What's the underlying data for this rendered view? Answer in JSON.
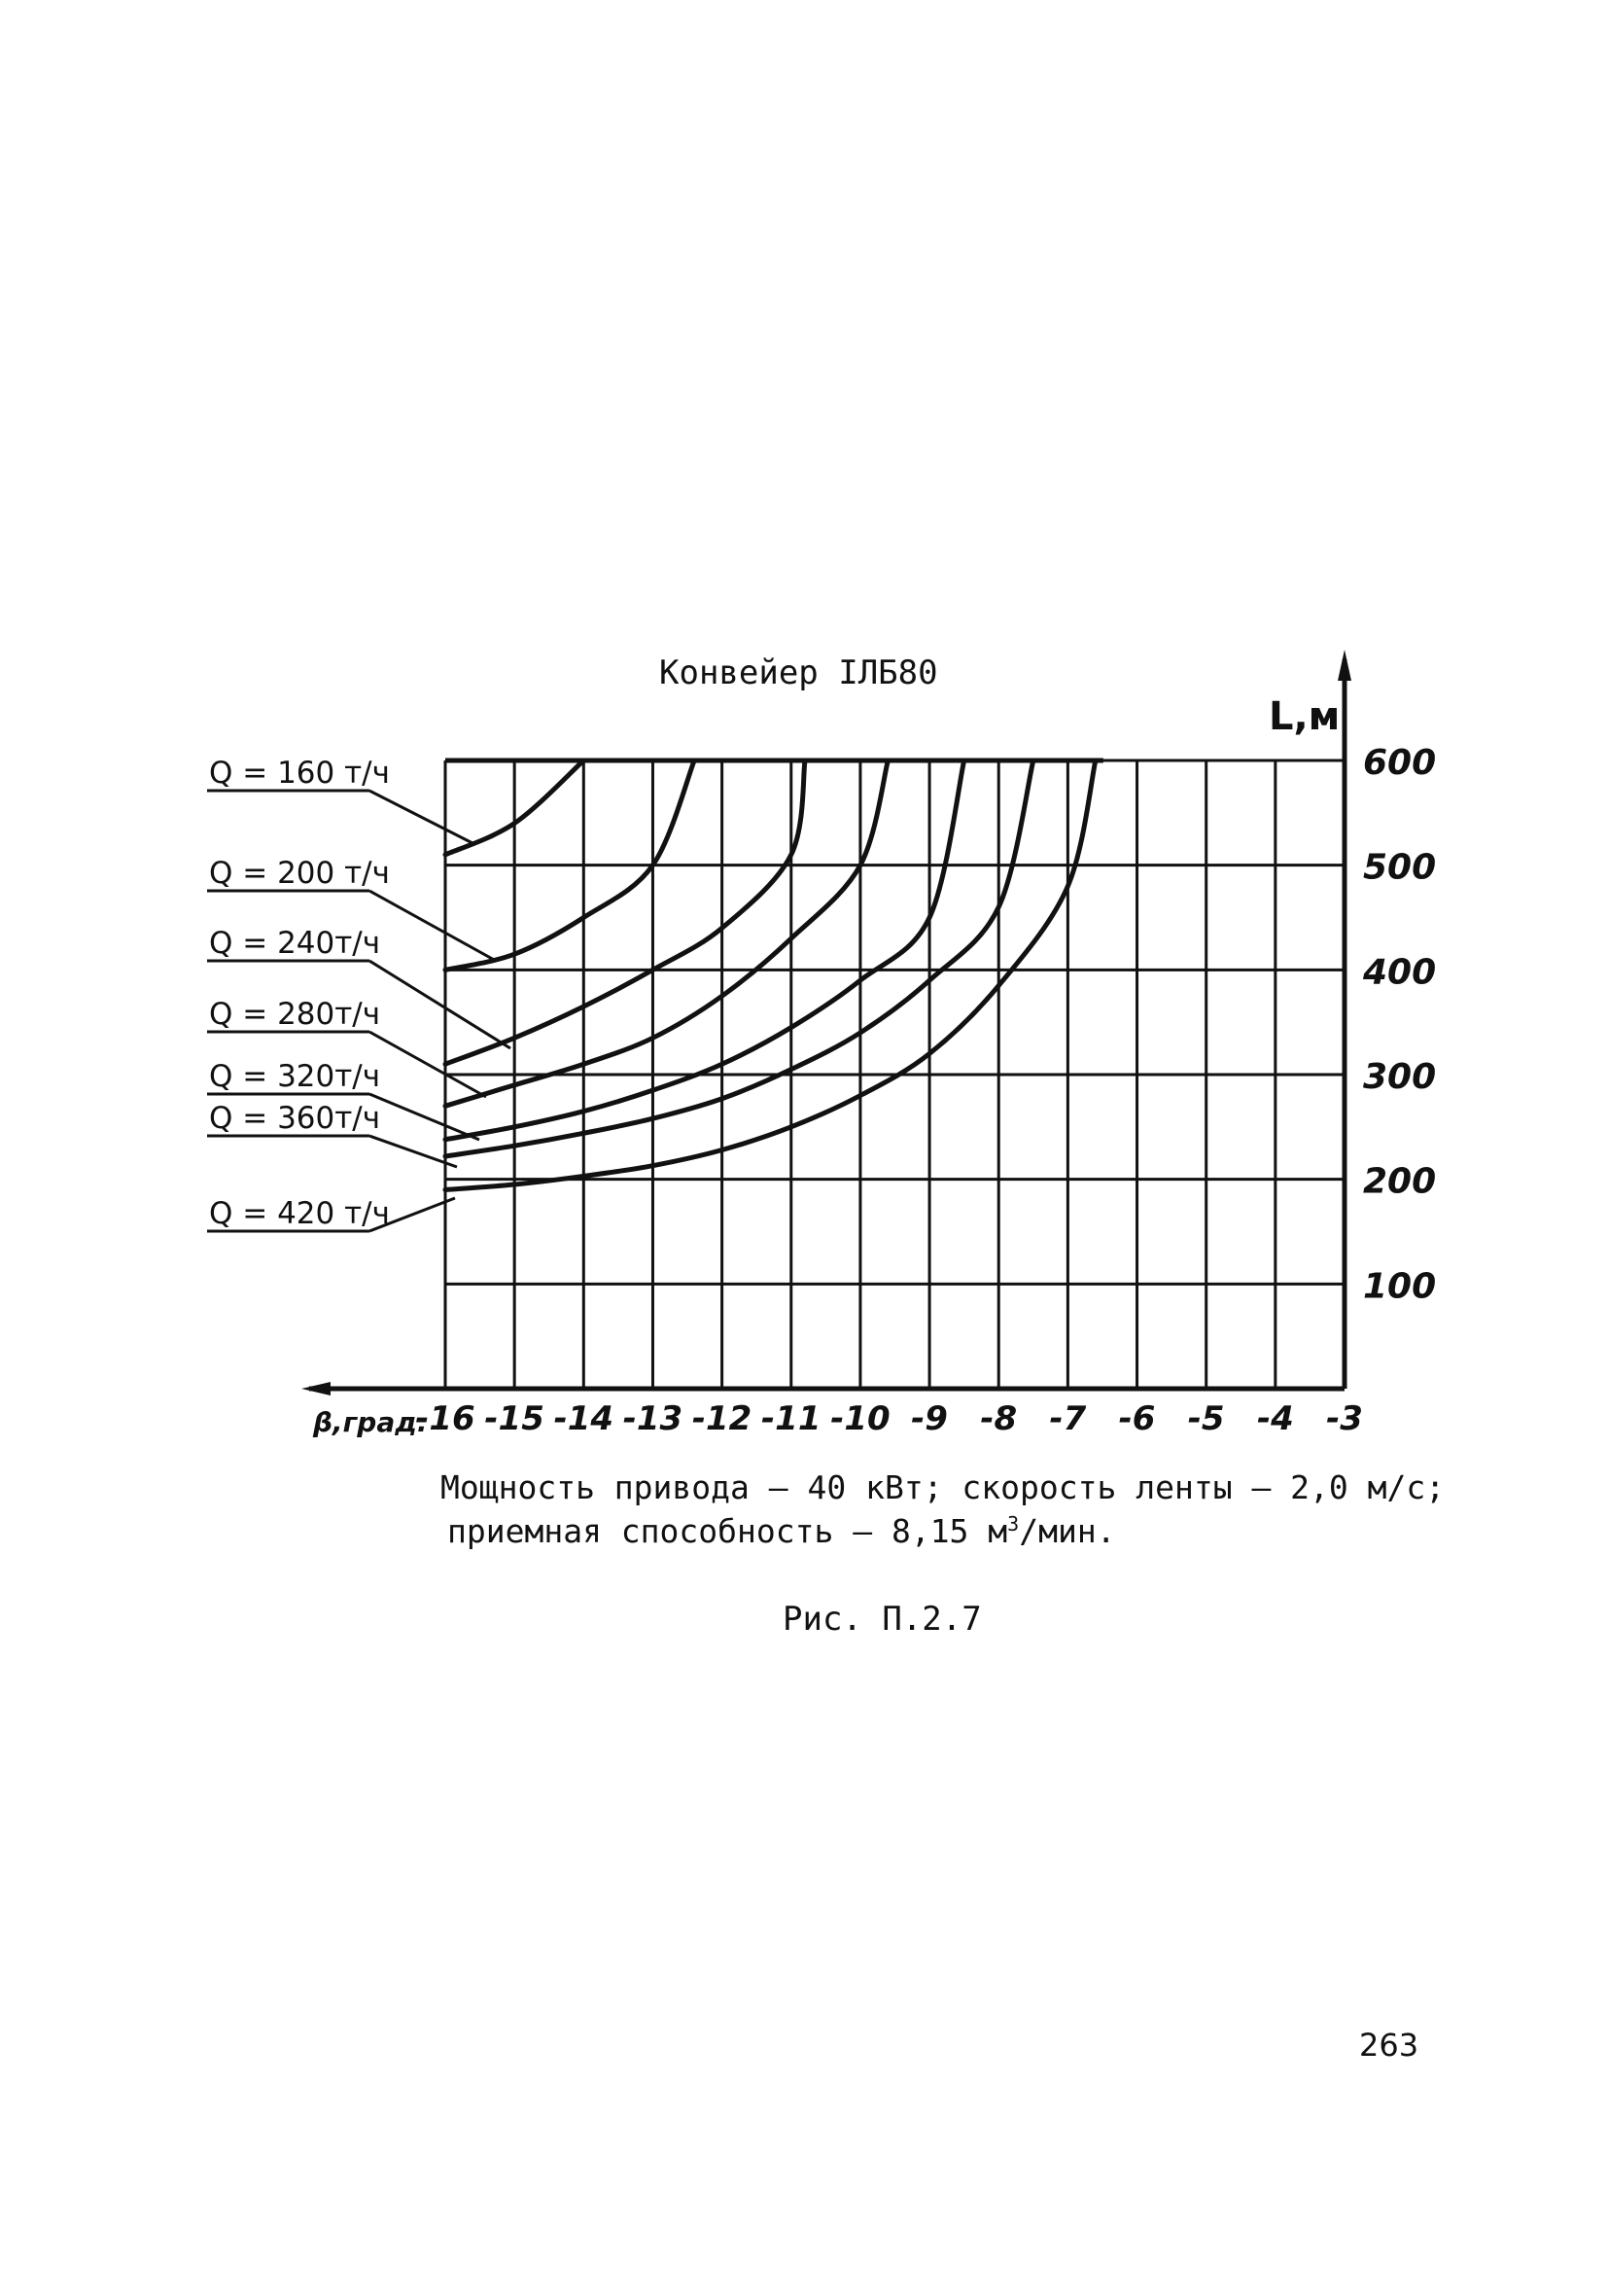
{
  "chart_data": {
    "type": "line",
    "title": "Конвейер IЛБ80",
    "xlabel": "β,град.",
    "ylabel": "L,м",
    "xlim": [
      -16,
      -3
    ],
    "ylim": [
      0,
      600
    ],
    "x_ticks": [
      "-16",
      "-15",
      "-14",
      "-13",
      "-12",
      "-11",
      "-10",
      "-9",
      "-8",
      "-7",
      "-6",
      "-5",
      "-4",
      "-3"
    ],
    "y_ticks": [
      "100",
      "200",
      "300",
      "400",
      "500",
      "600"
    ],
    "grid": true,
    "legend": "left, with leader lines",
    "series": [
      {
        "name": "Q = 160 т/ч",
        "x": [
          -16,
          -15,
          -14
        ],
        "y": [
          510,
          540,
          600
        ]
      },
      {
        "name": "Q = 200 т/ч",
        "x": [
          -16,
          -15,
          -14,
          -13,
          -12.4
        ],
        "y": [
          400,
          415,
          450,
          500,
          600
        ]
      },
      {
        "name": "Q = 240 т/ч",
        "x": [
          -16,
          -15,
          -14,
          -13,
          -12,
          -11,
          -10.8
        ],
        "y": [
          310,
          335,
          365,
          400,
          440,
          510,
          600
        ]
      },
      {
        "name": "Q = 280 т/ч",
        "x": [
          -16,
          -15,
          -14,
          -13,
          -12,
          -11,
          -10,
          -9.6
        ],
        "y": [
          270,
          290,
          310,
          335,
          375,
          430,
          500,
          600
        ]
      },
      {
        "name": "Q = 320 т/ч",
        "x": [
          -16,
          -15,
          -14,
          -13,
          -12,
          -11,
          -10,
          -9,
          -8.5
        ],
        "y": [
          238,
          250,
          265,
          285,
          310,
          345,
          390,
          450,
          600
        ]
      },
      {
        "name": "Q = 360 т/ч",
        "x": [
          -16,
          -15,
          -14,
          -13,
          -12,
          -11,
          -10,
          -9,
          -8,
          -7.5
        ],
        "y": [
          222,
          232,
          244,
          258,
          277,
          305,
          340,
          390,
          460,
          600
        ]
      },
      {
        "name": "Q = 420 т/ч",
        "x": [
          -16,
          -15,
          -14,
          -13,
          -12,
          -11,
          -10,
          -9,
          -8,
          -7,
          -6.6
        ],
        "y": [
          190,
          195,
          203,
          213,
          228,
          250,
          280,
          320,
          385,
          480,
          600
        ]
      }
    ],
    "legend_labels": [
      "Q = 160 т/ч",
      "Q = 200 т/ч",
      "Q = 240т/ч",
      "Q = 280т/ч",
      "Q = 320т/ч",
      "Q = 360т/ч",
      "Q = 420 т/ч"
    ]
  },
  "text": {
    "caption_line1": "Мощность привода – 40 кВт; скорость ленты – 2,0 м/с;",
    "caption_line2_prefix": "приемная способность – 8,15 м",
    "caption_line2_sup": "3",
    "caption_line2_suffix": "/мин.",
    "figure_label": "Рис. П.2.7",
    "page_number": "263"
  }
}
